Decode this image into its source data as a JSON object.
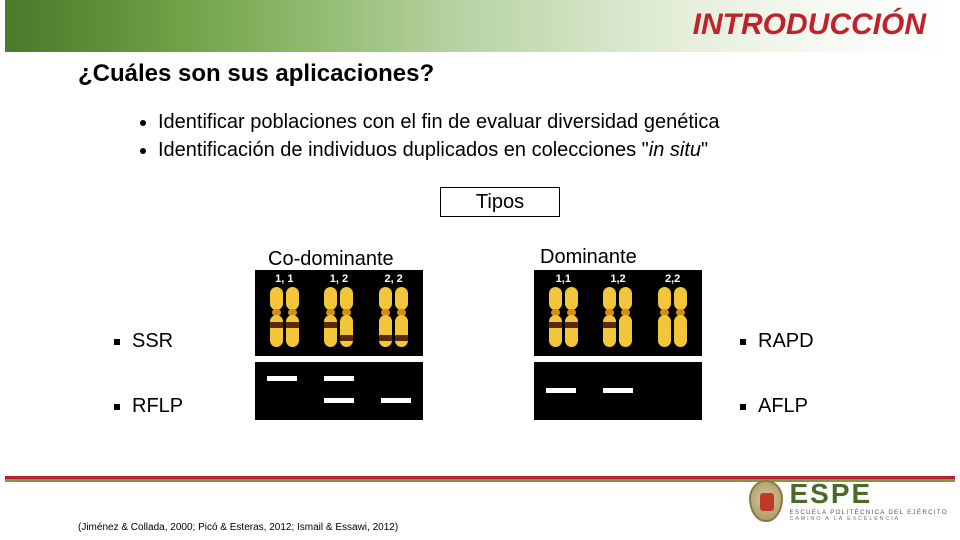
{
  "header": {
    "section_title": "INTRODUCCIÓN"
  },
  "question": "¿Cuáles son sus aplicaciones?",
  "bullets": {
    "b1": "Identificar poblaciones con el fin de evaluar diversidad genética",
    "b2_pre": "Identificación de individuos duplicados en colecciones \"",
    "b2_it": "in situ",
    "b2_post": "\""
  },
  "tipos_label": "Tipos",
  "columns": {
    "codominant": {
      "label": "Co-dominante",
      "markers": {
        "m1": "SSR",
        "m2": "RFLP"
      },
      "genotypes": {
        "g1": "1, 1",
        "g2": "1, 2",
        "g3": "2, 2"
      }
    },
    "dominant": {
      "label": "Dominante",
      "markers": {
        "m1": "RAPD",
        "m2": "AFLP"
      },
      "genotypes": {
        "g1": "1,1",
        "g2": "1,2",
        "g3": "2,2"
      }
    }
  },
  "diagram_style": {
    "chromosome_fill": "#f2c638",
    "centromere_fill": "#d08f18",
    "band_fill": "#5a2a0c",
    "panel_bg": "#000000",
    "gel_band_color": "#ffffff"
  },
  "footer": {
    "citation": "(Jiménez & Collada, 2000; Picó & Esteras, 2012; Ismail & Essawi, 2012)",
    "logo": {
      "name": "ESPE",
      "sub": "ESCUELA POLITÉCNICA DEL EJÉRCITO",
      "tag": "CAMINO A LA EXCELENCIA"
    },
    "bar_color": "#7a9a4c",
    "bar_accent": "#b72330"
  }
}
